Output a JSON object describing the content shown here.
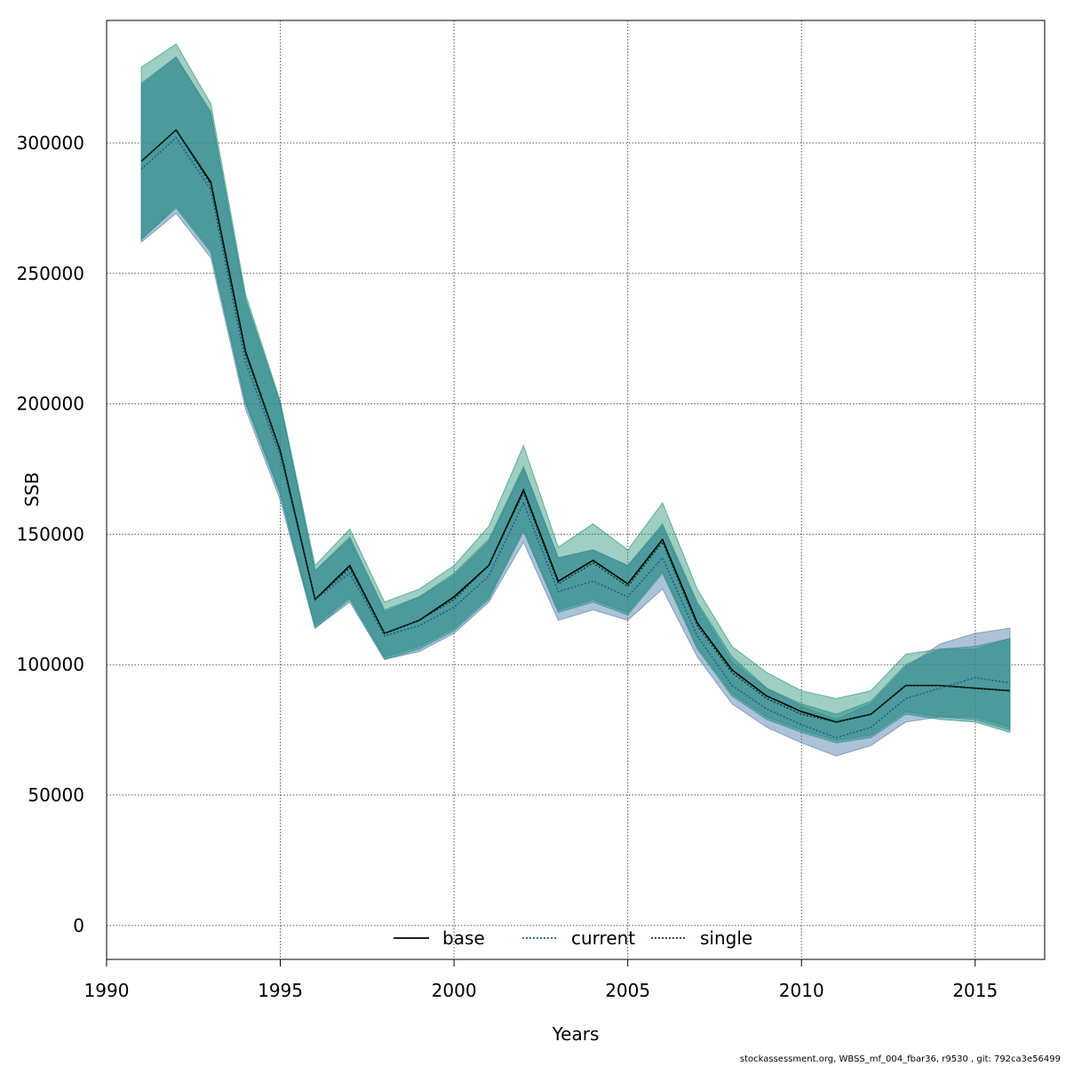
{
  "chart_data": {
    "type": "line",
    "title": "",
    "xlabel": "Years",
    "ylabel": "SSB",
    "xlim": [
      1990,
      2017
    ],
    "ylim": [
      -13000,
      347000
    ],
    "xticks": [
      1990,
      1995,
      2000,
      2005,
      2010,
      2015
    ],
    "yticks": [
      0,
      50000,
      100000,
      150000,
      200000,
      250000,
      300000
    ],
    "grid": true,
    "legend_position": "bottom-center",
    "x": [
      1991,
      1992,
      1993,
      1994,
      1995,
      1996,
      1997,
      1998,
      1999,
      2000,
      2001,
      2002,
      2003,
      2004,
      2005,
      2006,
      2007,
      2008,
      2009,
      2010,
      2011,
      2012,
      2013,
      2014,
      2015,
      2016
    ],
    "series": [
      {
        "name": "base",
        "line_style": "solid",
        "color": "#000000",
        "band_color": "#1a8b6e",
        "values": [
          293000,
          305000,
          285000,
          220000,
          182000,
          125000,
          138000,
          112000,
          117000,
          126000,
          138000,
          167000,
          132000,
          140000,
          131000,
          148000,
          116000,
          98000,
          88000,
          82000,
          78000,
          81000,
          92000,
          92000,
          91000,
          90000
        ],
        "lower": [
          263000,
          276000,
          259000,
          201000,
          166000,
          115000,
          126000,
          103000,
          107000,
          114000,
          126000,
          152000,
          121000,
          125000,
          120000,
          136000,
          107000,
          89000,
          80000,
          75000,
          71000,
          73000,
          82000,
          80000,
          79000,
          75000
        ],
        "upper": [
          329000,
          338000,
          315000,
          242000,
          201000,
          138000,
          152000,
          124000,
          129000,
          138000,
          153000,
          184000,
          145000,
          154000,
          144000,
          162000,
          129000,
          107000,
          97000,
          90000,
          87000,
          90000,
          104000,
          106000,
          107000,
          110000
        ]
      },
      {
        "name": "current",
        "line_style": "dotted",
        "color": "#1f5e8a",
        "band_color": "#4a78a6",
        "values": [
          290000,
          302000,
          282000,
          216000,
          180000,
          125000,
          135000,
          111000,
          115000,
          122000,
          134000,
          162000,
          128000,
          132000,
          126000,
          141000,
          111000,
          92000,
          83000,
          77000,
          72000,
          76000,
          87000,
          91000,
          95000,
          93000
        ],
        "lower": [
          262000,
          273000,
          256000,
          198000,
          163000,
          114000,
          124000,
          102000,
          105000,
          112000,
          124000,
          147000,
          117000,
          121000,
          117000,
          129000,
          103000,
          85000,
          76000,
          70000,
          65000,
          69000,
          78000,
          80000,
          80000,
          76000
        ],
        "upper": [
          322000,
          333000,
          311000,
          240000,
          200000,
          136000,
          148000,
          120000,
          126000,
          134000,
          147000,
          175000,
          141000,
          144000,
          138000,
          153000,
          123000,
          101000,
          91000,
          84000,
          79000,
          85000,
          99000,
          108000,
          112000,
          114000
        ]
      },
      {
        "name": "single",
        "line_style": "dotted",
        "color": "#0b3d2e",
        "band_color": "#2a8f86",
        "values": [
          293000,
          305000,
          284000,
          219000,
          182000,
          125000,
          137000,
          112000,
          117000,
          125000,
          138000,
          166000,
          131000,
          139000,
          130000,
          147000,
          115000,
          97000,
          87000,
          81000,
          78000,
          81000,
          92000,
          92000,
          91000,
          90000
        ],
        "lower": [
          263000,
          275000,
          258000,
          200000,
          165000,
          114000,
          125000,
          102000,
          106000,
          113000,
          125000,
          151000,
          120000,
          124000,
          119000,
          135000,
          106000,
          88000,
          79000,
          74000,
          70000,
          72000,
          81000,
          79000,
          78000,
          74000
        ],
        "upper": [
          323000,
          333000,
          312000,
          240000,
          200000,
          136000,
          149000,
          121000,
          126000,
          135000,
          148000,
          176000,
          141000,
          144000,
          138000,
          154000,
          124000,
          103000,
          91000,
          85000,
          81000,
          86000,
          100000,
          106000,
          106000,
          110000
        ]
      }
    ]
  },
  "footer": {
    "text": "stockassessment.org, WBSS_mf_004_fbar36, r9530 , git: 792ca3e56499"
  }
}
